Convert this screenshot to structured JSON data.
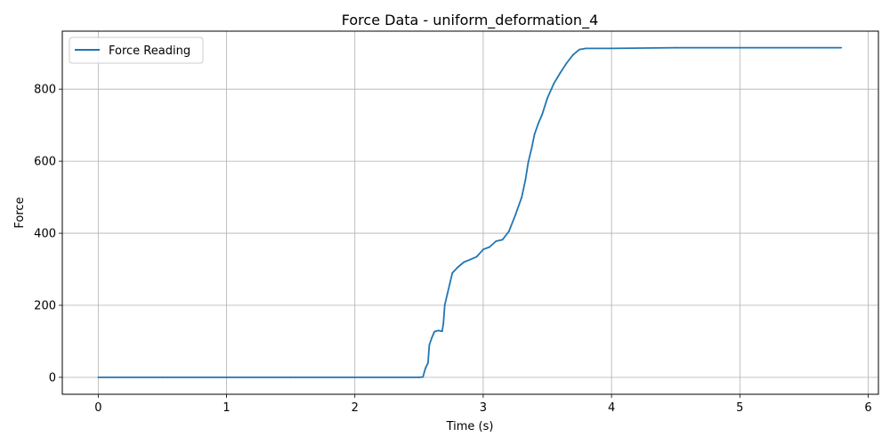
{
  "chart_data": {
    "type": "line",
    "title": "Force Data - uniform_deformation_4",
    "xlabel": "Time (s)",
    "ylabel": "Force",
    "xlim": [
      -0.28,
      6.08
    ],
    "ylim": [
      -47,
      961
    ],
    "xticks": [
      0,
      1,
      2,
      3,
      4,
      5,
      6
    ],
    "yticks": [
      0,
      200,
      400,
      600,
      800
    ],
    "grid": true,
    "legend_position": "top-left",
    "series": [
      {
        "name": "Force Reading",
        "color": "#1f77b4",
        "x": [
          0,
          0.5,
          1.0,
          1.5,
          2.0,
          2.5,
          2.53,
          2.55,
          2.57,
          2.58,
          2.6,
          2.62,
          2.65,
          2.68,
          2.69,
          2.7,
          2.72,
          2.74,
          2.76,
          2.8,
          2.85,
          2.9,
          2.95,
          3.0,
          3.05,
          3.1,
          3.15,
          3.2,
          3.25,
          3.3,
          3.33,
          3.35,
          3.38,
          3.4,
          3.43,
          3.46,
          3.5,
          3.55,
          3.6,
          3.65,
          3.7,
          3.75,
          3.8,
          3.85,
          4.0,
          4.5,
          5.0,
          5.5,
          5.79
        ],
        "values": [
          0,
          0,
          0,
          0,
          0,
          0,
          1,
          25,
          40,
          90,
          110,
          127,
          130,
          128,
          150,
          200,
          230,
          260,
          290,
          305,
          320,
          327,
          335,
          355,
          362,
          378,
          382,
          405,
          450,
          500,
          550,
          595,
          640,
          675,
          705,
          730,
          775,
          815,
          845,
          872,
          895,
          910,
          913,
          913,
          913,
          915,
          915,
          915,
          915
        ]
      }
    ]
  }
}
